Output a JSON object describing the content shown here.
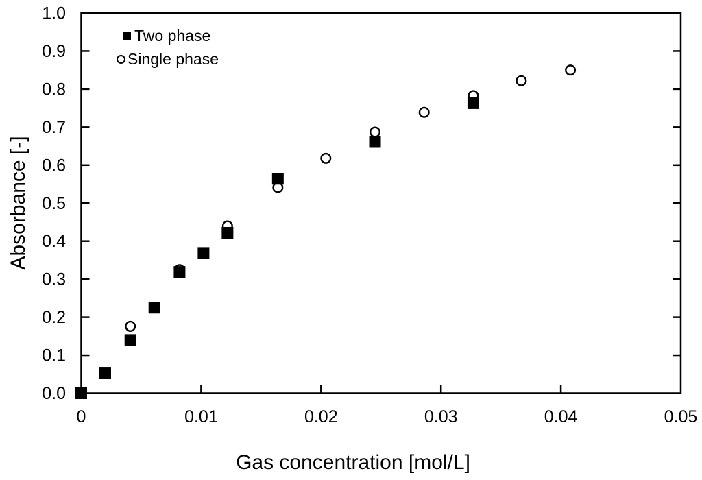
{
  "figure": {
    "background_color": "#ffffff",
    "axis_color": "#000000",
    "marker_color": "#000000",
    "marker_fill_open": "#ffffff"
  },
  "chart_data": {
    "type": "scatter",
    "title": "",
    "xlabel": "Gas concentration [mol/L]",
    "ylabel": "Absorbance [-]",
    "xlim": [
      0,
      0.05
    ],
    "ylim": [
      0,
      1.0
    ],
    "x_ticks": [
      0,
      0.01,
      0.02,
      0.03,
      0.04,
      0.05
    ],
    "x_tick_labels": [
      "0",
      "0.01",
      "0.02",
      "0.03",
      "0.04",
      "0.05"
    ],
    "y_ticks": [
      0,
      0.1,
      0.2,
      0.3,
      0.4,
      0.5,
      0.6,
      0.7,
      0.8,
      0.9,
      1.0
    ],
    "y_tick_labels": [
      "0.0",
      "0.1",
      "0.2",
      "0.3",
      "0.4",
      "0.5",
      "0.6",
      "0.7",
      "0.8",
      "0.9",
      "1.0"
    ],
    "grid": false,
    "legend_position": "top-left-inside",
    "series": [
      {
        "name": "Two phase",
        "marker": "filled-square",
        "points": [
          [
            0,
            0
          ],
          [
            0.002,
            0.054
          ],
          [
            0.0041,
            0.14
          ],
          [
            0.0061,
            0.225
          ],
          [
            0.0082,
            0.319
          ],
          [
            0.0102,
            0.369
          ],
          [
            0.0122,
            0.422
          ],
          [
            0.0164,
            0.564
          ],
          [
            0.0245,
            0.661
          ],
          [
            0.0327,
            0.763
          ]
        ]
      },
      {
        "name": "Single phase",
        "marker": "open-circle",
        "points": [
          [
            0.0041,
            0.176
          ],
          [
            0.0082,
            0.325
          ],
          [
            0.0122,
            0.44
          ],
          [
            0.0164,
            0.541
          ],
          [
            0.0204,
            0.618
          ],
          [
            0.0245,
            0.687
          ],
          [
            0.0286,
            0.739
          ],
          [
            0.0327,
            0.783
          ],
          [
            0.0367,
            0.822
          ],
          [
            0.0408,
            0.85
          ]
        ]
      }
    ]
  }
}
